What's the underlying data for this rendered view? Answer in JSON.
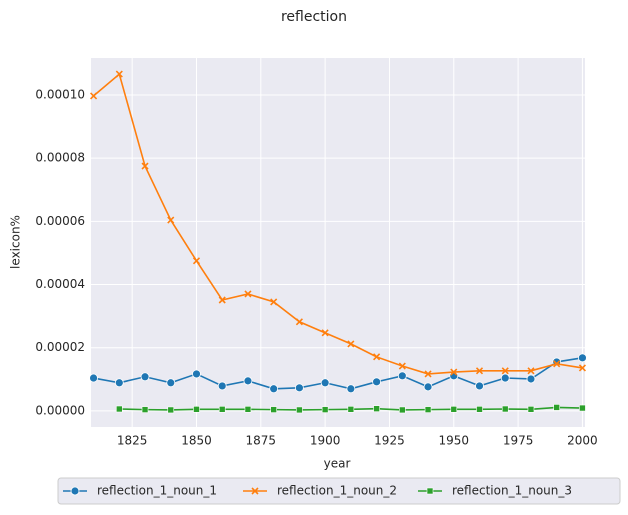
{
  "chart_data": {
    "type": "line",
    "title": "reflection",
    "x_label": "year",
    "y_label": "lexicon%",
    "x": [
      1810,
      1820,
      1830,
      1840,
      1850,
      1860,
      1870,
      1880,
      1890,
      1900,
      1910,
      1920,
      1930,
      1940,
      1950,
      1960,
      1970,
      1980,
      1990,
      2000
    ],
    "series": [
      {
        "name": "reflection_1_noun_1",
        "color": "#1f77b4",
        "marker": "o",
        "values": [
          1.04e-05,
          8.9e-06,
          1.08e-05,
          8.9e-06,
          1.17e-05,
          7.9e-06,
          9.5e-06,
          7e-06,
          7.3e-06,
          8.9e-06,
          7e-06,
          9.2e-06,
          1.11e-05,
          7.6e-06,
          1.11e-05,
          7.9e-06,
          1.04e-05,
          1.01e-05,
          1.55e-05,
          1.68e-05
        ]
      },
      {
        "name": "reflection_1_noun_2",
        "color": "#ff7f0e",
        "marker": "x",
        "values": [
          9.97e-05,
          0.0001066,
          7.75e-05,
          6.04e-05,
          4.75e-05,
          3.51e-05,
          3.7e-05,
          3.45e-05,
          2.82e-05,
          2.47e-05,
          2.12e-05,
          1.71e-05,
          1.42e-05,
          1.17e-05,
          1.23e-05,
          1.27e-05,
          1.27e-05,
          1.27e-05,
          1.49e-05,
          1.36e-05
        ]
      },
      {
        "name": "reflection_1_noun_3",
        "color": "#2ca02c",
        "marker": "s",
        "values": [
          null,
          6e-07,
          4e-07,
          3e-07,
          5e-07,
          5e-07,
          5e-07,
          4e-07,
          3e-07,
          4e-07,
          5e-07,
          7e-07,
          3e-07,
          4e-07,
          5e-07,
          5e-07,
          6e-07,
          5e-07,
          1.1e-06,
          9e-07
        ]
      }
    ],
    "xlim": [
      1809,
      2001
    ],
    "xticks": [
      1825,
      1850,
      1875,
      1900,
      1925,
      1950,
      1975,
      2000
    ],
    "ylim": [
      -5.1e-06,
      0.0001117
    ],
    "yticks": [
      {
        "value": 0,
        "label": "0.00000"
      },
      {
        "value": 2e-05,
        "label": "0.00002"
      },
      {
        "value": 4e-05,
        "label": "0.00004"
      },
      {
        "value": 6e-05,
        "label": "0.00006"
      },
      {
        "value": 8e-05,
        "label": "0.00008"
      },
      {
        "value": 0.0001,
        "label": "0.00010"
      }
    ],
    "grid": true,
    "legend": "bottom"
  }
}
